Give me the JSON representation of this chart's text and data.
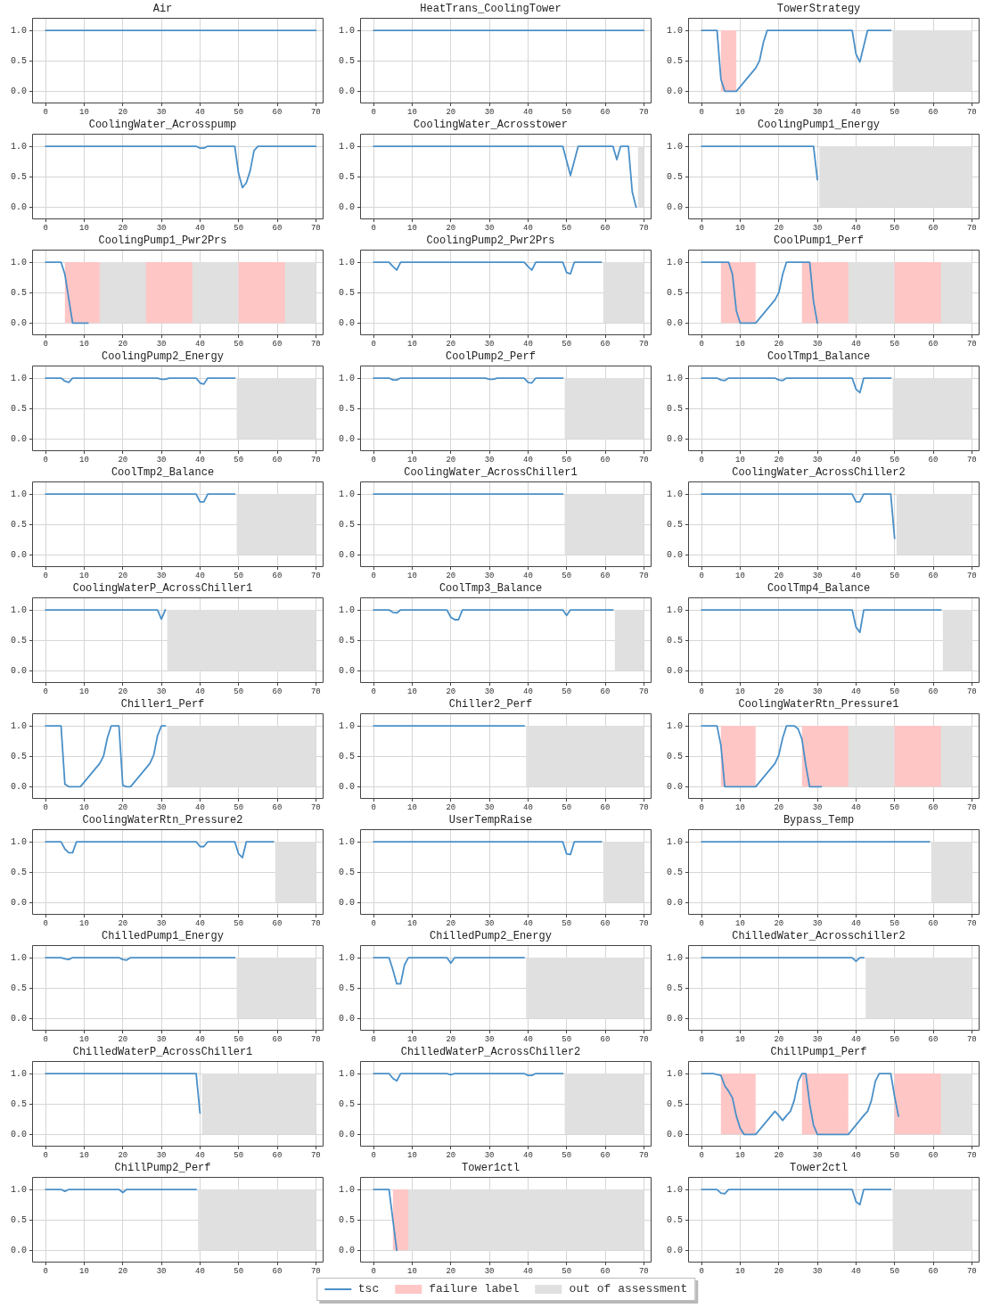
{
  "chart_data": [
    {
      "type": "line",
      "title": "Air",
      "x": [
        0,
        70
      ],
      "series": [
        {
          "color": "#4a90c8",
          "values": [
            1,
            1
          ]
        }
      ],
      "xlim": [
        -3.5,
        72
      ],
      "xticks": [
        0,
        10,
        20,
        30,
        40,
        50,
        60,
        70
      ],
      "ylim": [
        -0.2,
        1.2
      ],
      "yticks": [
        {
          "value": 0,
          "label": "0.0"
        },
        {
          "value": 0.5,
          "label": "0.5"
        },
        {
          "value": 1,
          "label": "1.0"
        }
      ],
      "grid": true
    },
    {
      "type": "line",
      "title": "HeatTrans_CoolingTower",
      "x": [
        0,
        70
      ],
      "series": [
        {
          "color": "#4a90c8",
          "values": [
            1,
            1
          ]
        }
      ],
      "xlim": [
        -3.5,
        72
      ],
      "xticks": [
        0,
        10,
        20,
        30,
        40,
        50,
        60,
        70
      ],
      "ylim": [
        -0.2,
        1.2
      ],
      "yticks": [
        {
          "value": 0,
          "label": "0.0"
        },
        {
          "value": 0.5,
          "label": "0.5"
        },
        {
          "value": 1,
          "label": "1.0"
        }
      ],
      "grid": true
    },
    {
      "type": "line",
      "title": "TowerStrategy",
      "x": [
        0,
        4,
        4.5,
        5,
        6,
        9,
        14,
        15,
        16,
        17,
        39,
        40,
        41,
        43,
        49
      ],
      "series": [
        {
          "color": "#4a90c8",
          "values": [
            1,
            1,
            0.6,
            0.2,
            0,
            0,
            0.38,
            0.5,
            0.8,
            1,
            1,
            0.61,
            0.48,
            1,
            1
          ]
        }
      ],
      "xlim": [
        -3.5,
        72
      ],
      "xticks": [
        0,
        10,
        20,
        30,
        40,
        50,
        60,
        70
      ],
      "ylim": [
        -0.2,
        1.2
      ],
      "yticks": [
        {
          "value": 0,
          "label": "0.0"
        },
        {
          "value": 0.5,
          "label": "0.5"
        },
        {
          "value": 1,
          "label": "1.0"
        }
      ],
      "grid": true,
      "bands": [
        {
          "axis": "x",
          "from": 49.5,
          "to": 70,
          "color": "#e0e0e0"
        },
        {
          "axis": "x",
          "from": 5,
          "to": 9,
          "color": "#ffc6c6"
        }
      ]
    },
    {
      "type": "line",
      "title": "CoolingWater_Acrosspump",
      "x": [
        0,
        39,
        40,
        41,
        42,
        49,
        50,
        51,
        52,
        53,
        54,
        55,
        70
      ],
      "series": [
        {
          "color": "#4a90c8",
          "values": [
            1,
            1,
            0.97,
            0.97,
            1,
            1,
            0.55,
            0.32,
            0.4,
            0.6,
            0.93,
            1,
            1
          ]
        }
      ],
      "xlim": [
        -3.5,
        72
      ],
      "xticks": [
        0,
        10,
        20,
        30,
        40,
        50,
        60,
        70
      ],
      "ylim": [
        -0.2,
        1.2
      ],
      "yticks": [
        {
          "value": 0,
          "label": "0.0"
        },
        {
          "value": 0.5,
          "label": "0.5"
        },
        {
          "value": 1,
          "label": "1.0"
        }
      ],
      "grid": true
    },
    {
      "type": "line",
      "title": "CoolingWater_Acrosstower",
      "x": [
        0,
        49,
        51,
        53,
        62,
        63,
        64,
        66,
        67,
        68
      ],
      "series": [
        {
          "color": "#4a90c8",
          "values": [
            1,
            1,
            0.52,
            1,
            1,
            0.78,
            1,
            1,
            0.25,
            0
          ]
        }
      ],
      "xlim": [
        -3.5,
        72
      ],
      "xticks": [
        0,
        10,
        20,
        30,
        40,
        50,
        60,
        70
      ],
      "ylim": [
        -0.2,
        1.2
      ],
      "yticks": [
        {
          "value": 0,
          "label": "0.0"
        },
        {
          "value": 0.5,
          "label": "0.5"
        },
        {
          "value": 1,
          "label": "1.0"
        }
      ],
      "grid": true,
      "bands": [
        {
          "axis": "x",
          "from": 68.5,
          "to": 70,
          "color": "#e0e0e0"
        }
      ]
    },
    {
      "type": "line",
      "title": "CoolingPump1_Energy",
      "x": [
        0,
        29,
        30
      ],
      "series": [
        {
          "color": "#4a90c8",
          "values": [
            1,
            1,
            0.45
          ]
        }
      ],
      "xlim": [
        -3.5,
        72
      ],
      "xticks": [
        0,
        10,
        20,
        30,
        40,
        50,
        60,
        70
      ],
      "ylim": [
        -0.2,
        1.2
      ],
      "yticks": [
        {
          "value": 0,
          "label": "0.0"
        },
        {
          "value": 0.5,
          "label": "0.5"
        },
        {
          "value": 1,
          "label": "1.0"
        }
      ],
      "grid": true,
      "bands": [
        {
          "axis": "x",
          "from": 30.5,
          "to": 70,
          "color": "#e0e0e0"
        }
      ]
    },
    {
      "type": "line",
      "title": "CoolingPump1_Pwr2Prs",
      "x": [
        0,
        4,
        5,
        6,
        7,
        11
      ],
      "series": [
        {
          "color": "#4a90c8",
          "values": [
            1,
            1,
            0.8,
            0.4,
            0,
            0
          ]
        }
      ],
      "xlim": [
        -3.5,
        72
      ],
      "xticks": [
        0,
        10,
        20,
        30,
        40,
        50,
        60,
        70
      ],
      "ylim": [
        -0.2,
        1.2
      ],
      "yticks": [
        {
          "value": 0,
          "label": "0.0"
        },
        {
          "value": 0.5,
          "label": "0.5"
        },
        {
          "value": 1,
          "label": "1.0"
        }
      ],
      "grid": true,
      "bands": [
        {
          "axis": "x",
          "from": 11.5,
          "to": 70,
          "color": "#e0e0e0"
        },
        {
          "axis": "x",
          "from": 5,
          "to": 14,
          "color": "#ffc6c6"
        },
        {
          "axis": "x",
          "from": 26,
          "to": 38,
          "color": "#ffc6c6"
        },
        {
          "axis": "x",
          "from": 50,
          "to": 62,
          "color": "#ffc6c6"
        }
      ]
    },
    {
      "type": "line",
      "title": "CoolingPump2_Pwr2Prs",
      "x": [
        0,
        4,
        5,
        6,
        7,
        39,
        40,
        41,
        42,
        49,
        50,
        51,
        52,
        59
      ],
      "series": [
        {
          "color": "#4a90c8",
          "values": [
            1,
            1,
            0.93,
            0.87,
            1,
            1,
            0.93,
            0.87,
            1,
            1,
            0.83,
            0.81,
            1,
            1
          ]
        }
      ],
      "xlim": [
        -3.5,
        72
      ],
      "xticks": [
        0,
        10,
        20,
        30,
        40,
        50,
        60,
        70
      ],
      "ylim": [
        -0.2,
        1.2
      ],
      "yticks": [
        {
          "value": 0,
          "label": "0.0"
        },
        {
          "value": 0.5,
          "label": "0.5"
        },
        {
          "value": 1,
          "label": "1.0"
        }
      ],
      "grid": true,
      "bands": [
        {
          "axis": "x",
          "from": 59.5,
          "to": 70,
          "color": "#e0e0e0"
        }
      ]
    },
    {
      "type": "line",
      "title": "CoolPump1_Perf",
      "x": [
        0,
        7,
        8,
        9,
        10,
        14,
        19,
        20,
        21,
        22,
        28,
        29,
        30
      ],
      "series": [
        {
          "color": "#4a90c8",
          "values": [
            1,
            1,
            0.8,
            0.2,
            0,
            0,
            0.38,
            0.5,
            0.8,
            1,
            1,
            0.35,
            0
          ]
        }
      ],
      "xlim": [
        -3.5,
        72
      ],
      "xticks": [
        0,
        10,
        20,
        30,
        40,
        50,
        60,
        70
      ],
      "ylim": [
        -0.2,
        1.2
      ],
      "yticks": [
        {
          "value": 0,
          "label": "0.0"
        },
        {
          "value": 0.5,
          "label": "0.5"
        },
        {
          "value": 1,
          "label": "1.0"
        }
      ],
      "grid": true,
      "bands": [
        {
          "axis": "x",
          "from": 30.5,
          "to": 70,
          "color": "#e0e0e0"
        },
        {
          "axis": "x",
          "from": 5,
          "to": 14,
          "color": "#ffc6c6"
        },
        {
          "axis": "x",
          "from": 26,
          "to": 38,
          "color": "#ffc6c6"
        },
        {
          "axis": "x",
          "from": 50,
          "to": 62,
          "color": "#ffc6c6"
        }
      ]
    },
    {
      "type": "line",
      "title": "CoolingPump2_Energy",
      "x": [
        0,
        4,
        5,
        6,
        7,
        29,
        30,
        31,
        32,
        39,
        40,
        41,
        42,
        49
      ],
      "series": [
        {
          "color": "#4a90c8",
          "values": [
            1,
            1,
            0.95,
            0.93,
            1,
            1,
            0.98,
            0.98,
            1,
            1,
            0.92,
            0.9,
            1,
            1
          ]
        }
      ],
      "xlim": [
        -3.5,
        72
      ],
      "xticks": [
        0,
        10,
        20,
        30,
        40,
        50,
        60,
        70
      ],
      "ylim": [
        -0.2,
        1.2
      ],
      "yticks": [
        {
          "value": 0,
          "label": "0.0"
        },
        {
          "value": 0.5,
          "label": "0.5"
        },
        {
          "value": 1,
          "label": "1.0"
        }
      ],
      "grid": true,
      "bands": [
        {
          "axis": "x",
          "from": 49.5,
          "to": 70,
          "color": "#e0e0e0"
        }
      ]
    },
    {
      "type": "line",
      "title": "CoolPump2_Perf",
      "x": [
        0,
        4,
        5,
        6,
        7,
        29,
        30,
        31,
        32,
        39,
        40,
        41,
        42,
        49
      ],
      "series": [
        {
          "color": "#4a90c8",
          "values": [
            1,
            1,
            0.97,
            0.97,
            1,
            1,
            0.98,
            0.98,
            1,
            1,
            0.93,
            0.92,
            1,
            1
          ]
        }
      ],
      "xlim": [
        -3.5,
        72
      ],
      "xticks": [
        0,
        10,
        20,
        30,
        40,
        50,
        60,
        70
      ],
      "ylim": [
        -0.2,
        1.2
      ],
      "yticks": [
        {
          "value": 0,
          "label": "0.0"
        },
        {
          "value": 0.5,
          "label": "0.5"
        },
        {
          "value": 1,
          "label": "1.0"
        }
      ],
      "grid": true,
      "bands": [
        {
          "axis": "x",
          "from": 49.5,
          "to": 70,
          "color": "#e0e0e0"
        }
      ]
    },
    {
      "type": "line",
      "title": "CoolTmp1_Balance",
      "x": [
        0,
        4,
        5,
        6,
        7,
        19,
        20,
        21,
        22,
        39,
        40,
        41,
        42,
        49
      ],
      "series": [
        {
          "color": "#4a90c8",
          "values": [
            1,
            1,
            0.97,
            0.96,
            1,
            1,
            0.97,
            0.96,
            1,
            1,
            0.82,
            0.76,
            1,
            1
          ]
        }
      ],
      "xlim": [
        -3.5,
        72
      ],
      "xticks": [
        0,
        10,
        20,
        30,
        40,
        50,
        60,
        70
      ],
      "ylim": [
        -0.2,
        1.2
      ],
      "yticks": [
        {
          "value": 0,
          "label": "0.0"
        },
        {
          "value": 0.5,
          "label": "0.5"
        },
        {
          "value": 1,
          "label": "1.0"
        }
      ],
      "grid": true,
      "bands": [
        {
          "axis": "x",
          "from": 49.5,
          "to": 70,
          "color": "#e0e0e0"
        }
      ]
    },
    {
      "type": "line",
      "title": "CoolTmp2_Balance",
      "x": [
        0,
        39,
        40,
        41,
        42,
        49
      ],
      "series": [
        {
          "color": "#4a90c8",
          "values": [
            1,
            1,
            0.87,
            0.87,
            1,
            1
          ]
        }
      ],
      "xlim": [
        -3.5,
        72
      ],
      "xticks": [
        0,
        10,
        20,
        30,
        40,
        50,
        60,
        70
      ],
      "ylim": [
        -0.2,
        1.2
      ],
      "yticks": [
        {
          "value": 0,
          "label": "0.0"
        },
        {
          "value": 0.5,
          "label": "0.5"
        },
        {
          "value": 1,
          "label": "1.0"
        }
      ],
      "grid": true,
      "bands": [
        {
          "axis": "x",
          "from": 49.5,
          "to": 70,
          "color": "#e0e0e0"
        }
      ]
    },
    {
      "type": "line",
      "title": "CoolingWater_AcrossChiller1",
      "x": [
        0,
        49
      ],
      "series": [
        {
          "color": "#4a90c8",
          "values": [
            1,
            1
          ]
        }
      ],
      "xlim": [
        -3.5,
        72
      ],
      "xticks": [
        0,
        10,
        20,
        30,
        40,
        50,
        60,
        70
      ],
      "ylim": [
        -0.2,
        1.2
      ],
      "yticks": [
        {
          "value": 0,
          "label": "0.0"
        },
        {
          "value": 0.5,
          "label": "0.5"
        },
        {
          "value": 1,
          "label": "1.0"
        }
      ],
      "grid": true,
      "bands": [
        {
          "axis": "x",
          "from": 49.5,
          "to": 70,
          "color": "#e0e0e0"
        }
      ]
    },
    {
      "type": "line",
      "title": "CoolingWater_AcrossChiller2",
      "x": [
        0,
        39,
        40,
        41,
        42,
        49,
        50
      ],
      "series": [
        {
          "color": "#4a90c8",
          "values": [
            1,
            1,
            0.87,
            0.87,
            1,
            1,
            0.27
          ]
        }
      ],
      "xlim": [
        -3.5,
        72
      ],
      "xticks": [
        0,
        10,
        20,
        30,
        40,
        50,
        60,
        70
      ],
      "ylim": [
        -0.2,
        1.2
      ],
      "yticks": [
        {
          "value": 0,
          "label": "0.0"
        },
        {
          "value": 0.5,
          "label": "0.5"
        },
        {
          "value": 1,
          "label": "1.0"
        }
      ],
      "grid": true,
      "bands": [
        {
          "axis": "x",
          "from": 50.5,
          "to": 70,
          "color": "#e0e0e0"
        }
      ]
    },
    {
      "type": "line",
      "title": "CoolingWaterP_AcrossChiller1",
      "x": [
        0,
        29,
        30,
        31
      ],
      "series": [
        {
          "color": "#4a90c8",
          "values": [
            1,
            1,
            0.85,
            1
          ]
        }
      ],
      "xlim": [
        -3.5,
        72
      ],
      "xticks": [
        0,
        10,
        20,
        30,
        40,
        50,
        60,
        70
      ],
      "ylim": [
        -0.2,
        1.2
      ],
      "yticks": [
        {
          "value": 0,
          "label": "0.0"
        },
        {
          "value": 0.5,
          "label": "0.5"
        },
        {
          "value": 1,
          "label": "1.0"
        }
      ],
      "grid": true,
      "bands": [
        {
          "axis": "x",
          "from": 31.5,
          "to": 70,
          "color": "#e0e0e0"
        }
      ]
    },
    {
      "type": "line",
      "title": "CoolTmp3_Balance",
      "x": [
        0,
        4,
        5,
        6,
        7,
        19,
        20,
        21,
        22,
        23,
        49,
        50,
        51,
        62
      ],
      "series": [
        {
          "color": "#4a90c8",
          "values": [
            1,
            1,
            0.96,
            0.95,
            1,
            1,
            0.88,
            0.84,
            0.84,
            1,
            1,
            0.91,
            1,
            1
          ]
        }
      ],
      "xlim": [
        -3.5,
        72
      ],
      "xticks": [
        0,
        10,
        20,
        30,
        40,
        50,
        60,
        70
      ],
      "ylim": [
        -0.2,
        1.2
      ],
      "yticks": [
        {
          "value": 0,
          "label": "0.0"
        },
        {
          "value": 0.5,
          "label": "0.5"
        },
        {
          "value": 1,
          "label": "1.0"
        }
      ],
      "grid": true,
      "bands": [
        {
          "axis": "x",
          "from": 62.5,
          "to": 70,
          "color": "#e0e0e0"
        }
      ]
    },
    {
      "type": "line",
      "title": "CoolTmp4_Balance",
      "x": [
        0,
        39,
        40,
        41,
        42,
        62
      ],
      "series": [
        {
          "color": "#4a90c8",
          "values": [
            1,
            1,
            0.72,
            0.63,
            1,
            1
          ]
        }
      ],
      "xlim": [
        -3.5,
        72
      ],
      "xticks": [
        0,
        10,
        20,
        30,
        40,
        50,
        60,
        70
      ],
      "ylim": [
        -0.2,
        1.2
      ],
      "yticks": [
        {
          "value": 0,
          "label": "0.0"
        },
        {
          "value": 0.5,
          "label": "0.5"
        },
        {
          "value": 1,
          "label": "1.0"
        }
      ],
      "grid": true,
      "bands": [
        {
          "axis": "x",
          "from": 62.5,
          "to": 70,
          "color": "#e0e0e0"
        }
      ]
    },
    {
      "type": "line",
      "title": "Chiller1_Perf",
      "x": [
        0,
        4,
        5,
        6,
        9,
        14,
        15,
        16,
        17,
        19,
        20,
        21,
        22,
        27,
        28,
        29,
        30,
        31
      ],
      "series": [
        {
          "color": "#4a90c8",
          "values": [
            1,
            1,
            0.04,
            0,
            0,
            0.38,
            0.5,
            0.8,
            1,
            1,
            0.02,
            0,
            0,
            0.38,
            0.52,
            0.84,
            1,
            1
          ]
        }
      ],
      "xlim": [
        -3.5,
        72
      ],
      "xticks": [
        0,
        10,
        20,
        30,
        40,
        50,
        60,
        70
      ],
      "ylim": [
        -0.2,
        1.2
      ],
      "yticks": [
        {
          "value": 0,
          "label": "0.0"
        },
        {
          "value": 0.5,
          "label": "0.5"
        },
        {
          "value": 1,
          "label": "1.0"
        }
      ],
      "grid": true,
      "bands": [
        {
          "axis": "x",
          "from": 31.5,
          "to": 70,
          "color": "#e0e0e0"
        }
      ]
    },
    {
      "type": "line",
      "title": "Chiller2_Perf",
      "x": [
        0,
        39
      ],
      "series": [
        {
          "color": "#4a90c8",
          "values": [
            1,
            1
          ]
        }
      ],
      "xlim": [
        -3.5,
        72
      ],
      "xticks": [
        0,
        10,
        20,
        30,
        40,
        50,
        60,
        70
      ],
      "ylim": [
        -0.2,
        1.2
      ],
      "yticks": [
        {
          "value": 0,
          "label": "0.0"
        },
        {
          "value": 0.5,
          "label": "0.5"
        },
        {
          "value": 1,
          "label": "1.0"
        }
      ],
      "grid": true,
      "bands": [
        {
          "axis": "x",
          "from": 39.5,
          "to": 70,
          "color": "#e0e0e0"
        }
      ]
    },
    {
      "type": "line",
      "title": "CoolingWaterRtn_Pressure1",
      "x": [
        0,
        4,
        5,
        6,
        14,
        19,
        20,
        21,
        22,
        24,
        25,
        26,
        27,
        28,
        31
      ],
      "series": [
        {
          "color": "#4a90c8",
          "values": [
            1,
            1,
            0.68,
            0,
            0,
            0.38,
            0.52,
            0.8,
            1,
            1,
            0.95,
            0.78,
            0.35,
            0,
            0
          ]
        }
      ],
      "xlim": [
        -3.5,
        72
      ],
      "xticks": [
        0,
        10,
        20,
        30,
        40,
        50,
        60,
        70
      ],
      "ylim": [
        -0.2,
        1.2
      ],
      "yticks": [
        {
          "value": 0,
          "label": "0.0"
        },
        {
          "value": 0.5,
          "label": "0.5"
        },
        {
          "value": 1,
          "label": "1.0"
        }
      ],
      "grid": true,
      "bands": [
        {
          "axis": "x",
          "from": 31.5,
          "to": 70,
          "color": "#e0e0e0"
        },
        {
          "axis": "x",
          "from": 5,
          "to": 14,
          "color": "#ffc6c6"
        },
        {
          "axis": "x",
          "from": 26,
          "to": 38,
          "color": "#ffc6c6"
        },
        {
          "axis": "x",
          "from": 50,
          "to": 62,
          "color": "#ffc6c6"
        }
      ]
    },
    {
      "type": "line",
      "title": "CoolingWaterRtn_Pressure2",
      "x": [
        0,
        4,
        5,
        6,
        7,
        8,
        39,
        40,
        41,
        42,
        49,
        50,
        51,
        52,
        59
      ],
      "series": [
        {
          "color": "#4a90c8",
          "values": [
            1,
            1,
            0.88,
            0.82,
            0.82,
            1,
            1,
            0.92,
            0.92,
            1,
            1,
            0.8,
            0.74,
            1,
            1
          ]
        }
      ],
      "xlim": [
        -3.5,
        72
      ],
      "xticks": [
        0,
        10,
        20,
        30,
        40,
        50,
        60,
        70
      ],
      "ylim": [
        -0.2,
        1.2
      ],
      "yticks": [
        {
          "value": 0,
          "label": "0.0"
        },
        {
          "value": 0.5,
          "label": "0.5"
        },
        {
          "value": 1,
          "label": "1.0"
        }
      ],
      "grid": true,
      "bands": [
        {
          "axis": "x",
          "from": 59.5,
          "to": 70,
          "color": "#e0e0e0"
        }
      ]
    },
    {
      "type": "line",
      "title": "UserTempRaise",
      "x": [
        0,
        49,
        50,
        51,
        52,
        59
      ],
      "series": [
        {
          "color": "#4a90c8",
          "values": [
            1,
            1,
            0.8,
            0.79,
            1,
            1
          ]
        }
      ],
      "xlim": [
        -3.5,
        72
      ],
      "xticks": [
        0,
        10,
        20,
        30,
        40,
        50,
        60,
        70
      ],
      "ylim": [
        -0.2,
        1.2
      ],
      "yticks": [
        {
          "value": 0,
          "label": "0.0"
        },
        {
          "value": 0.5,
          "label": "0.5"
        },
        {
          "value": 1,
          "label": "1.0"
        }
      ],
      "grid": true,
      "bands": [
        {
          "axis": "x",
          "from": 59.5,
          "to": 70,
          "color": "#e0e0e0"
        }
      ]
    },
    {
      "type": "line",
      "title": "Bypass_Temp",
      "x": [
        0,
        59
      ],
      "series": [
        {
          "color": "#4a90c8",
          "values": [
            1,
            1
          ]
        }
      ],
      "xlim": [
        -3.5,
        72
      ],
      "xticks": [
        0,
        10,
        20,
        30,
        40,
        50,
        60,
        70
      ],
      "ylim": [
        -0.2,
        1.2
      ],
      "yticks": [
        {
          "value": 0,
          "label": "0.0"
        },
        {
          "value": 0.5,
          "label": "0.5"
        },
        {
          "value": 1,
          "label": "1.0"
        }
      ],
      "grid": true,
      "bands": [
        {
          "axis": "x",
          "from": 59.5,
          "to": 70,
          "color": "#e0e0e0"
        }
      ]
    },
    {
      "type": "line",
      "title": "ChilledPump1_Energy",
      "x": [
        0,
        4,
        5,
        6,
        7,
        19,
        20,
        21,
        22,
        49
      ],
      "series": [
        {
          "color": "#4a90c8",
          "values": [
            1,
            1,
            0.98,
            0.97,
            1,
            1,
            0.97,
            0.96,
            1,
            1
          ]
        }
      ],
      "xlim": [
        -3.5,
        72
      ],
      "xticks": [
        0,
        10,
        20,
        30,
        40,
        50,
        60,
        70
      ],
      "ylim": [
        -0.2,
        1.2
      ],
      "yticks": [
        {
          "value": 0,
          "label": "0.0"
        },
        {
          "value": 0.5,
          "label": "0.5"
        },
        {
          "value": 1,
          "label": "1.0"
        }
      ],
      "grid": true,
      "bands": [
        {
          "axis": "x",
          "from": 49.5,
          "to": 70,
          "color": "#e0e0e0"
        }
      ]
    },
    {
      "type": "line",
      "title": "ChilledPump2_Energy",
      "x": [
        0,
        4,
        5,
        6,
        7,
        8,
        9,
        19,
        20,
        21,
        39
      ],
      "series": [
        {
          "color": "#4a90c8",
          "values": [
            1,
            1,
            0.8,
            0.57,
            0.57,
            0.88,
            1,
            1,
            0.91,
            1,
            1
          ]
        }
      ],
      "xlim": [
        -3.5,
        72
      ],
      "xticks": [
        0,
        10,
        20,
        30,
        40,
        50,
        60,
        70
      ],
      "ylim": [
        -0.2,
        1.2
      ],
      "yticks": [
        {
          "value": 0,
          "label": "0.0"
        },
        {
          "value": 0.5,
          "label": "0.5"
        },
        {
          "value": 1,
          "label": "1.0"
        }
      ],
      "grid": true,
      "bands": [
        {
          "axis": "x",
          "from": 39.5,
          "to": 70,
          "color": "#e0e0e0"
        }
      ]
    },
    {
      "type": "line",
      "title": "ChilledWater_Acrosschiller2",
      "x": [
        0,
        39,
        40,
        41,
        42
      ],
      "series": [
        {
          "color": "#4a90c8",
          "values": [
            1,
            1,
            0.94,
            1,
            1
          ]
        }
      ],
      "xlim": [
        -3.5,
        72
      ],
      "xticks": [
        0,
        10,
        20,
        30,
        40,
        50,
        60,
        70
      ],
      "ylim": [
        -0.2,
        1.2
      ],
      "yticks": [
        {
          "value": 0,
          "label": "0.0"
        },
        {
          "value": 0.5,
          "label": "0.5"
        },
        {
          "value": 1,
          "label": "1.0"
        }
      ],
      "grid": true,
      "bands": [
        {
          "axis": "x",
          "from": 42.5,
          "to": 70,
          "color": "#e0e0e0"
        }
      ]
    },
    {
      "type": "line",
      "title": "ChilledWaterP_AcrossChiller1",
      "x": [
        0,
        39,
        40
      ],
      "series": [
        {
          "color": "#4a90c8",
          "values": [
            1,
            1,
            0.35
          ]
        }
      ],
      "xlim": [
        -3.5,
        72
      ],
      "xticks": [
        0,
        10,
        20,
        30,
        40,
        50,
        60,
        70
      ],
      "ylim": [
        -0.2,
        1.2
      ],
      "yticks": [
        {
          "value": 0,
          "label": "0.0"
        },
        {
          "value": 0.5,
          "label": "0.5"
        },
        {
          "value": 1,
          "label": "1.0"
        }
      ],
      "grid": true,
      "bands": [
        {
          "axis": "x",
          "from": 40.5,
          "to": 70,
          "color": "#e0e0e0"
        }
      ]
    },
    {
      "type": "line",
      "title": "ChilledWaterP_AcrossChiller2",
      "x": [
        0,
        4,
        5,
        6,
        7,
        19,
        20,
        21,
        39,
        40,
        41,
        42,
        49
      ],
      "series": [
        {
          "color": "#4a90c8",
          "values": [
            1,
            1,
            0.92,
            0.88,
            1,
            1,
            0.98,
            1,
            1,
            0.97,
            0.97,
            1,
            1
          ]
        }
      ],
      "xlim": [
        -3.5,
        72
      ],
      "xticks": [
        0,
        10,
        20,
        30,
        40,
        50,
        60,
        70
      ],
      "ylim": [
        -0.2,
        1.2
      ],
      "yticks": [
        {
          "value": 0,
          "label": "0.0"
        },
        {
          "value": 0.5,
          "label": "0.5"
        },
        {
          "value": 1,
          "label": "1.0"
        }
      ],
      "grid": true,
      "bands": [
        {
          "axis": "x",
          "from": 49.5,
          "to": 70,
          "color": "#e0e0e0"
        }
      ]
    },
    {
      "type": "line",
      "title": "ChillPump1_Perf",
      "x": [
        0,
        3,
        5,
        6,
        7,
        8,
        9,
        10,
        11,
        14,
        19,
        20,
        21,
        22,
        23,
        24,
        25,
        26,
        27,
        28,
        29,
        30,
        38,
        42,
        43,
        44,
        45,
        46,
        49,
        50,
        51
      ],
      "series": [
        {
          "color": "#4a90c8",
          "values": [
            1,
            1,
            0.97,
            0.8,
            0.71,
            0.6,
            0.3,
            0.1,
            0,
            0,
            0.38,
            0.31,
            0.23,
            0.31,
            0.38,
            0.56,
            0.87,
            1,
            1,
            0.5,
            0.15,
            0,
            0,
            0.31,
            0.38,
            0.56,
            0.87,
            1,
            1,
            0.62,
            0.3
          ]
        }
      ],
      "xlim": [
        -3.5,
        72
      ],
      "xticks": [
        0,
        10,
        20,
        30,
        40,
        50,
        60,
        70
      ],
      "ylim": [
        -0.2,
        1.2
      ],
      "yticks": [
        {
          "value": 0,
          "label": "0.0"
        },
        {
          "value": 0.5,
          "label": "0.5"
        },
        {
          "value": 1,
          "label": "1.0"
        }
      ],
      "grid": true,
      "bands": [
        {
          "axis": "x",
          "from": 51.5,
          "to": 70,
          "color": "#e0e0e0"
        },
        {
          "axis": "x",
          "from": 5,
          "to": 14,
          "color": "#ffc6c6"
        },
        {
          "axis": "x",
          "from": 26,
          "to": 38,
          "color": "#ffc6c6"
        },
        {
          "axis": "x",
          "from": 50,
          "to": 62,
          "color": "#ffc6c6"
        }
      ]
    },
    {
      "type": "line",
      "title": "ChillPump2_Perf",
      "x": [
        0,
        4,
        5,
        6,
        19,
        20,
        21,
        39
      ],
      "series": [
        {
          "color": "#4a90c8",
          "values": [
            1,
            1,
            0.97,
            1,
            1,
            0.95,
            1,
            1
          ]
        }
      ],
      "xlim": [
        -3.5,
        72
      ],
      "xticks": [
        0,
        10,
        20,
        30,
        40,
        50,
        60,
        70
      ],
      "ylim": [
        -0.2,
        1.2
      ],
      "yticks": [
        {
          "value": 0,
          "label": "0.0"
        },
        {
          "value": 0.5,
          "label": "0.5"
        },
        {
          "value": 1,
          "label": "1.0"
        }
      ],
      "grid": true,
      "bands": [
        {
          "axis": "x",
          "from": 39.5,
          "to": 70,
          "color": "#e0e0e0"
        }
      ]
    },
    {
      "type": "line",
      "title": "Tower1ctl",
      "x": [
        0,
        4,
        6
      ],
      "series": [
        {
          "name": "tsc",
          "color": "#4a90c8",
          "values": [
            1,
            1,
            0
          ]
        }
      ],
      "xlim": [
        -3.5,
        72
      ],
      "xticks": [
        0,
        10,
        20,
        30,
        40,
        50,
        60,
        70
      ],
      "ylim": [
        -0.2,
        1.2
      ],
      "yticks": [
        {
          "value": 0,
          "label": "0.0"
        },
        {
          "value": 0.5,
          "label": "0.5"
        },
        {
          "value": 1,
          "label": "1.0"
        }
      ],
      "grid": true,
      "legend": "bottom",
      "bands": [
        {
          "axis": "x",
          "from": 6.5,
          "to": 70,
          "color": "#e0e0e0",
          "label": "out of assessment"
        },
        {
          "axis": "x",
          "from": 5,
          "to": 9,
          "color": "#ffc6c6",
          "label": "failure label"
        }
      ]
    },
    {
      "type": "line",
      "title": "Tower2ctl",
      "x": [
        0,
        4,
        5,
        6,
        7,
        39,
        40,
        41,
        42,
        49
      ],
      "series": [
        {
          "color": "#4a90c8",
          "values": [
            1,
            1,
            0.94,
            0.93,
            1,
            1,
            0.8,
            0.75,
            1,
            1
          ]
        }
      ],
      "xlim": [
        -3.5,
        72
      ],
      "xticks": [
        0,
        10,
        20,
        30,
        40,
        50,
        60,
        70
      ],
      "ylim": [
        -0.2,
        1.2
      ],
      "yticks": [
        {
          "value": 0,
          "label": "0.0"
        },
        {
          "value": 0.5,
          "label": "0.5"
        },
        {
          "value": 1,
          "label": "1.0"
        }
      ],
      "grid": true,
      "bands": [
        {
          "axis": "x",
          "from": 49.5,
          "to": 70,
          "color": "#e0e0e0"
        }
      ]
    }
  ]
}
